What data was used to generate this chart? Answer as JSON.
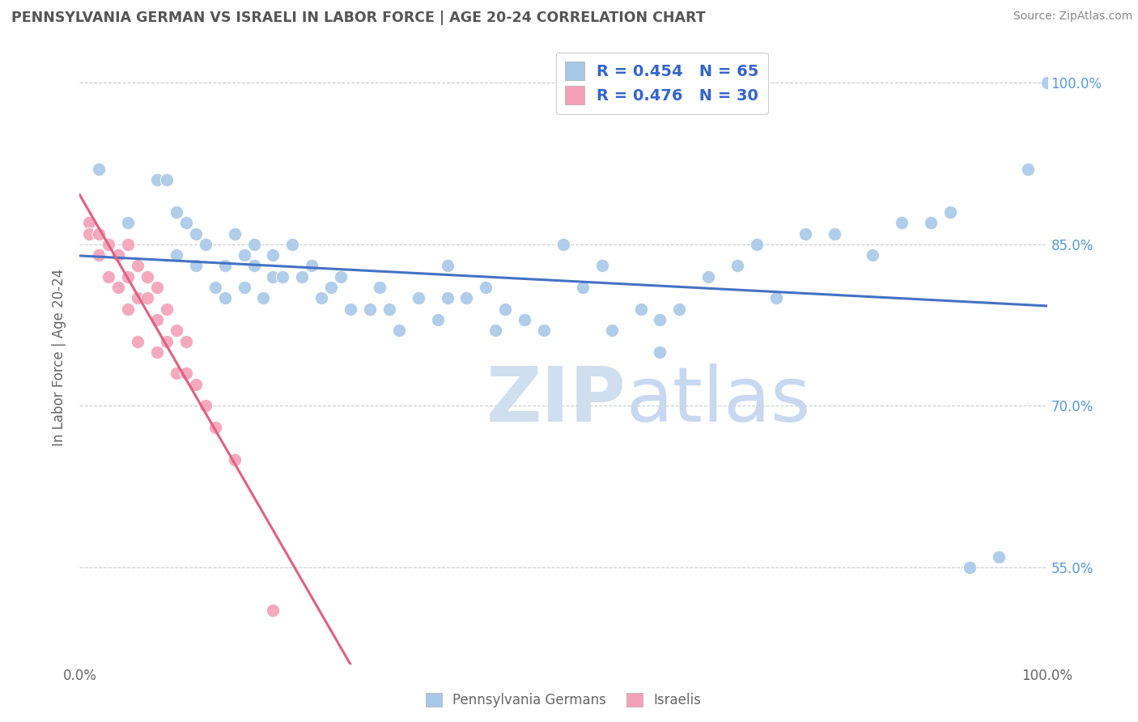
{
  "title": "PENNSYLVANIA GERMAN VS ISRAELI IN LABOR FORCE | AGE 20-24 CORRELATION CHART",
  "source": "Source: ZipAtlas.com",
  "ylabel": "In Labor Force | Age 20-24",
  "xlim": [
    0.0,
    1.0
  ],
  "ylim": [
    0.46,
    1.03
  ],
  "ytick_positions": [
    0.55,
    0.7,
    0.85,
    1.0
  ],
  "ytick_labels": [
    "55.0%",
    "70.0%",
    "85.0%",
    "100.0%"
  ],
  "blue_R": 0.454,
  "blue_N": 65,
  "pink_R": 0.476,
  "pink_N": 30,
  "blue_color": "#a8c8e8",
  "pink_color": "#f4a0b8",
  "blue_line_color": "#4472c4",
  "pink_line_color": "#e06080",
  "background_color": "#ffffff",
  "grid_color": "#cccccc",
  "blue_x": [
    0.02,
    0.05,
    0.08,
    0.09,
    0.1,
    0.1,
    0.11,
    0.12,
    0.12,
    0.13,
    0.14,
    0.15,
    0.15,
    0.16,
    0.17,
    0.17,
    0.18,
    0.18,
    0.19,
    0.2,
    0.2,
    0.21,
    0.22,
    0.23,
    0.24,
    0.25,
    0.26,
    0.27,
    0.28,
    0.3,
    0.31,
    0.32,
    0.33,
    0.35,
    0.37,
    0.38,
    0.38,
    0.4,
    0.42,
    0.43,
    0.44,
    0.46,
    0.48,
    0.5,
    0.52,
    0.54,
    0.55,
    0.58,
    0.6,
    0.6,
    0.62,
    0.65,
    0.68,
    0.7,
    0.72,
    0.75,
    0.78,
    0.82,
    0.85,
    0.88,
    0.9,
    0.92,
    0.95,
    0.98,
    1.0
  ],
  "blue_y": [
    0.92,
    0.87,
    0.91,
    0.91,
    0.88,
    0.84,
    0.87,
    0.86,
    0.83,
    0.85,
    0.81,
    0.83,
    0.8,
    0.86,
    0.84,
    0.81,
    0.85,
    0.83,
    0.8,
    0.84,
    0.82,
    0.82,
    0.85,
    0.82,
    0.83,
    0.8,
    0.81,
    0.82,
    0.79,
    0.79,
    0.81,
    0.79,
    0.77,
    0.8,
    0.78,
    0.83,
    0.8,
    0.8,
    0.81,
    0.77,
    0.79,
    0.78,
    0.77,
    0.85,
    0.81,
    0.83,
    0.77,
    0.79,
    0.78,
    0.75,
    0.79,
    0.82,
    0.83,
    0.85,
    0.8,
    0.86,
    0.86,
    0.84,
    0.87,
    0.87,
    0.88,
    0.55,
    0.56,
    0.92,
    1.0
  ],
  "pink_x": [
    0.01,
    0.01,
    0.02,
    0.02,
    0.03,
    0.03,
    0.04,
    0.04,
    0.05,
    0.05,
    0.05,
    0.06,
    0.06,
    0.06,
    0.07,
    0.07,
    0.08,
    0.08,
    0.08,
    0.09,
    0.09,
    0.1,
    0.1,
    0.11,
    0.11,
    0.12,
    0.13,
    0.14,
    0.16,
    0.2
  ],
  "pink_y": [
    0.87,
    0.86,
    0.86,
    0.84,
    0.85,
    0.82,
    0.84,
    0.81,
    0.85,
    0.82,
    0.79,
    0.83,
    0.8,
    0.76,
    0.82,
    0.8,
    0.81,
    0.78,
    0.75,
    0.79,
    0.76,
    0.77,
    0.73,
    0.76,
    0.73,
    0.72,
    0.7,
    0.68,
    0.65,
    0.51
  ],
  "watermark_zip_color": "#d0dff0",
  "watermark_atlas_color": "#c8d8f0"
}
